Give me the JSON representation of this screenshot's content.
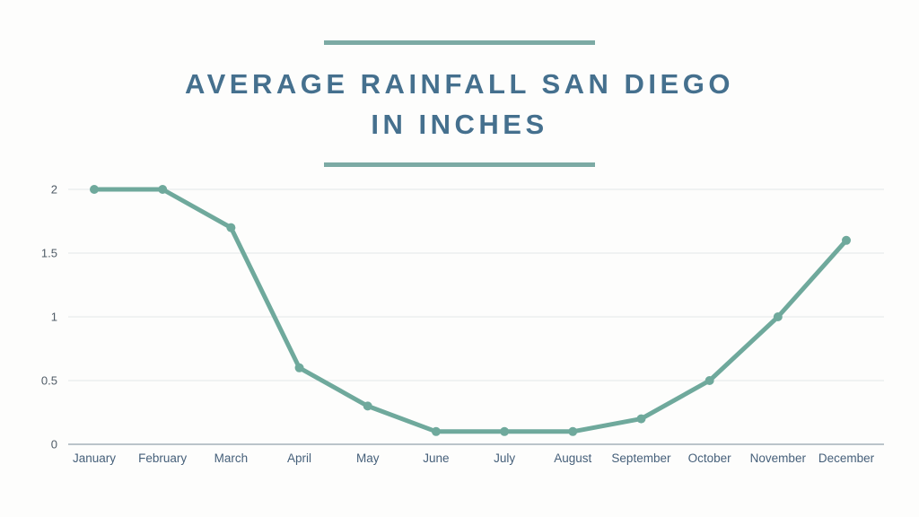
{
  "page": {
    "background": "#fdfdfc"
  },
  "header": {
    "title_line1": "AVERAGE RAINFALL SAN DIEGO",
    "title_line2": "IN INCHES",
    "title_color": "#45708e",
    "rule_color": "#7caaa4"
  },
  "chart_data": {
    "type": "line",
    "title": "Average Rainfall San Diego in Inches",
    "categories": [
      "January",
      "February",
      "March",
      "April",
      "May",
      "June",
      "July",
      "August",
      "September",
      "October",
      "November",
      "December"
    ],
    "values": [
      2,
      2,
      1.7,
      0.6,
      0.3,
      0.1,
      0.1,
      0.1,
      0.2,
      0.5,
      1,
      1.6
    ],
    "xlabel": "",
    "ylabel": "",
    "ylim": [
      0,
      2
    ],
    "yticks": [
      0,
      0.5,
      1,
      1.5,
      2
    ],
    "grid": true,
    "legend_position": "none",
    "line_color": "#6fa99c",
    "point_color": "#6fa99c",
    "gridline_color": "#e4e7e8",
    "axis_line_color": "#a3b1ba",
    "x_label_color": "#46607a",
    "y_label_color": "#4f5b66"
  }
}
